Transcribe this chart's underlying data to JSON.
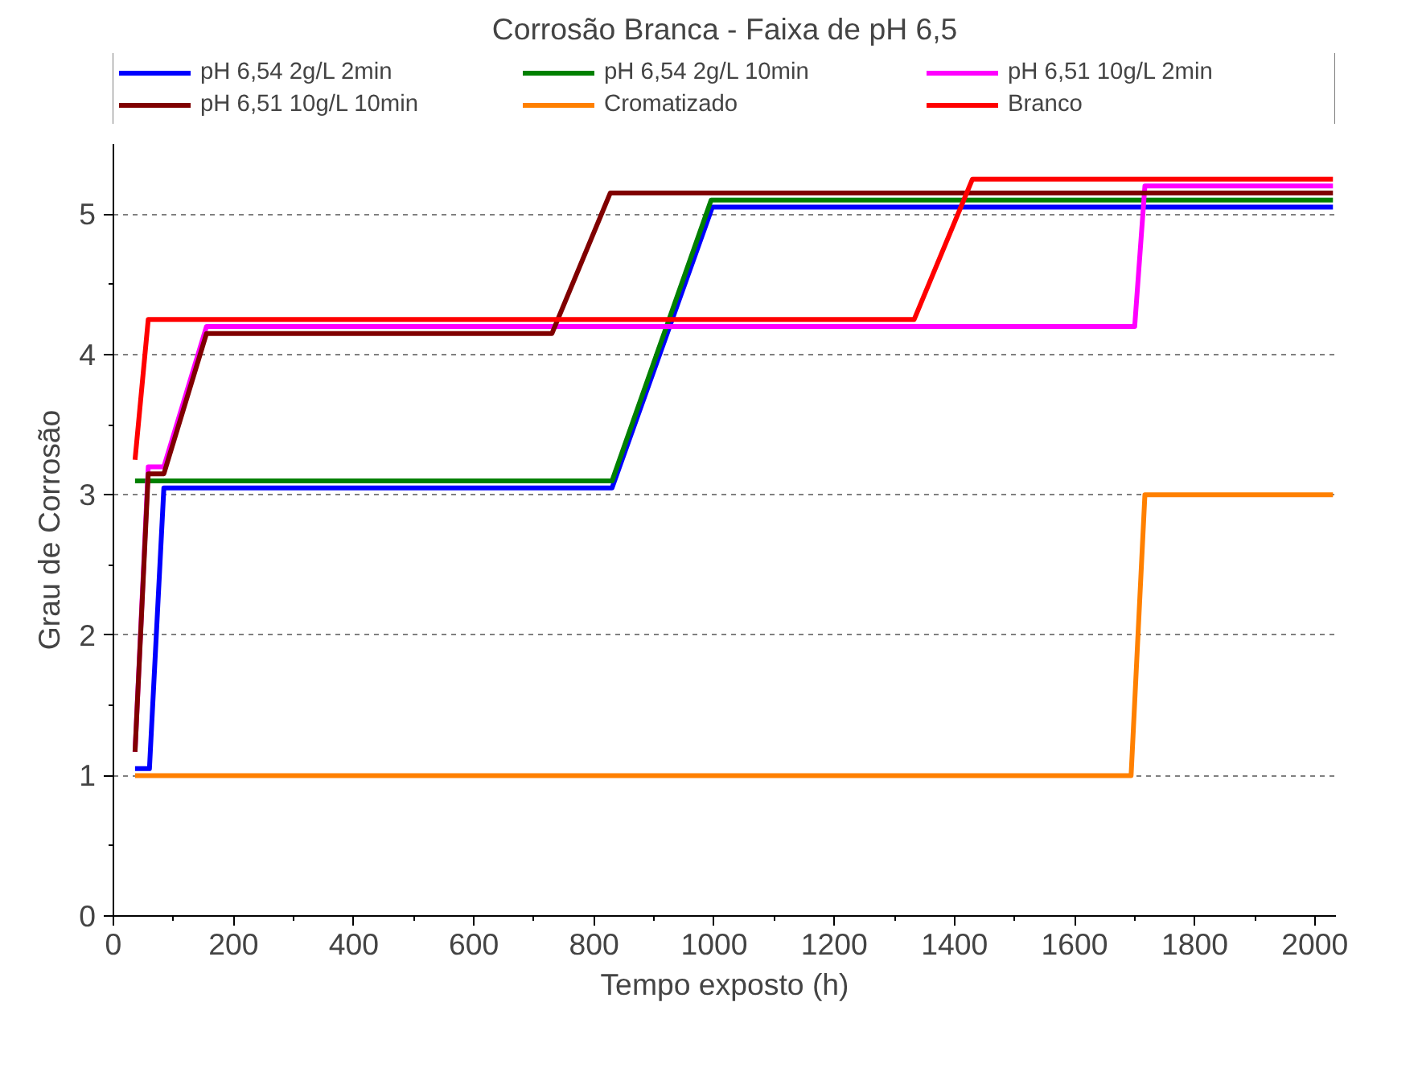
{
  "chart_data": {
    "type": "line",
    "title": "Corrosão Branca - Faixa de pH 6,5",
    "xlabel": "Tempo exposto (h)",
    "ylabel": "Grau de Corrosão",
    "xlim": [
      0,
      2035
    ],
    "ylim": [
      0,
      5.5
    ],
    "xticks": [
      0,
      200,
      400,
      600,
      800,
      1000,
      1200,
      1400,
      1600,
      1800,
      2000
    ],
    "yticks": [
      0,
      1,
      2,
      3,
      4,
      5
    ],
    "grid": "y",
    "legend": "top",
    "marker": "none",
    "line_style": "solid",
    "series": [
      {
        "name": "pH 6,54 2g/L 2min",
        "color": "#0000ff",
        "x": [
          36,
          60,
          84,
          830,
          997,
          2030
        ],
        "values": [
          1.05,
          1.05,
          3.05,
          3.05,
          5.05,
          5.05
        ]
      },
      {
        "name": "pH 6,54 2g/L 10min",
        "color": "#008000",
        "x": [
          36,
          830,
          995,
          2030
        ],
        "values": [
          3.1,
          3.1,
          5.1,
          5.1
        ]
      },
      {
        "name": "pH 6,51 10g/L 2min",
        "color": "#ff00ff",
        "x": [
          36,
          58,
          84,
          155,
          1700,
          1717,
          2030
        ],
        "values": [
          1.17,
          3.2,
          3.2,
          4.2,
          4.2,
          5.2,
          5.2
        ]
      },
      {
        "name": "pH 6,51 10g/L 10min",
        "color": "#800000",
        "x": [
          36,
          58,
          84,
          155,
          730,
          827,
          2030
        ],
        "values": [
          1.17,
          3.15,
          3.15,
          4.15,
          4.15,
          5.15,
          5.15
        ]
      },
      {
        "name": "Cromatizado",
        "color": "#ff8000",
        "x": [
          36,
          1694,
          1717,
          2030
        ],
        "values": [
          1,
          1,
          3,
          3
        ]
      },
      {
        "name": "Branco",
        "color": "#ff0000",
        "x": [
          36,
          58,
          1333,
          1430,
          2030
        ],
        "values": [
          3.25,
          4.25,
          4.25,
          5.25,
          5.25
        ]
      }
    ]
  }
}
